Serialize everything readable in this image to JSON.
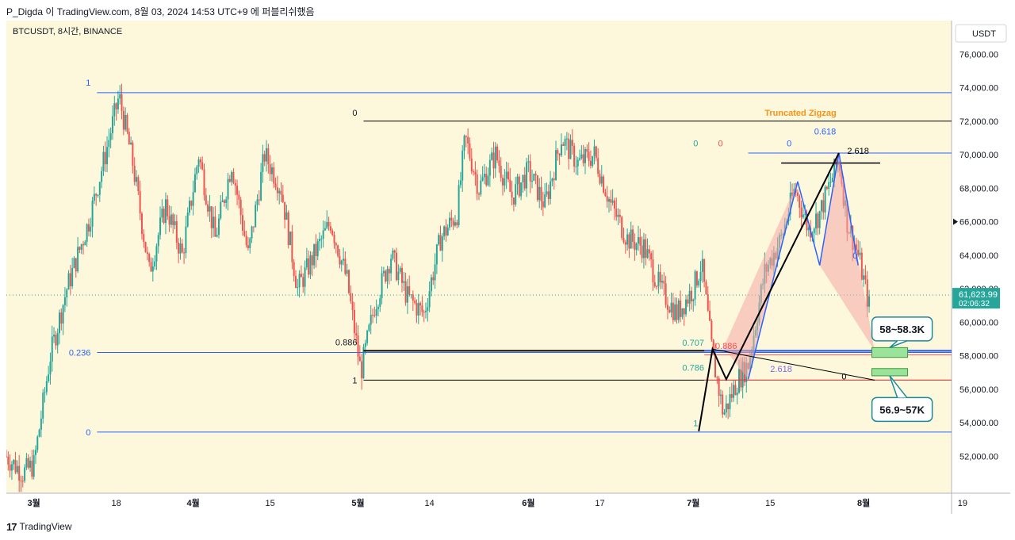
{
  "header": {
    "text": "P_Digda 이 TradingView.com, 8월 03, 2024 14:53 UTC+9 에 퍼블리쉬했음"
  },
  "footer": {
    "logo": "17",
    "brand": "TradingView"
  },
  "colors": {
    "background": "#fdf8dc",
    "up": "#26a69a",
    "down": "#ef5350",
    "fib_blue": "#2962ff",
    "fib_black": "#000000",
    "pattern_fill": "#f4a7a7",
    "target_zone": "#9be39b",
    "callout": "#1a8a9a",
    "zigzag_label": "#f7931a"
  },
  "chart_data": {
    "type": "candlestick",
    "symbol_title": "BTCUSDT, 8시간, BINANCE",
    "currency_label": "USDT",
    "ylim": [
      49800,
      78000
    ],
    "y_ticks": [
      52000,
      54000,
      56000,
      58000,
      60000,
      62000,
      64000,
      66000,
      68000,
      70000,
      72000,
      74000,
      76000
    ],
    "y_tick_labels": [
      "52,000.00",
      "54,000.00",
      "56,000.00",
      "58,000.00",
      "60,000.00",
      "62,000.00",
      "64,000.00",
      "66,000.00",
      "68,000.00",
      "70,000.00",
      "72,000.00",
      "74,000.00",
      "76,000.00"
    ],
    "x_range_days": [
      -5,
      167
    ],
    "x_ticks": [
      {
        "day": 0,
        "label": "3월"
      },
      {
        "day": 15,
        "label": "18"
      },
      {
        "day": 29,
        "label": "4월"
      },
      {
        "day": 43,
        "label": "15"
      },
      {
        "day": 59,
        "label": "5월"
      },
      {
        "day": 72,
        "label": "14"
      },
      {
        "day": 90,
        "label": "6월"
      },
      {
        "day": 103,
        "label": "17"
      },
      {
        "day": 120,
        "label": "7월"
      },
      {
        "day": 134,
        "label": "15"
      },
      {
        "day": 151,
        "label": "8월"
      },
      {
        "day": 169,
        "label": "19"
      }
    ],
    "price_path": [
      [
        -5,
        52000
      ],
      [
        -2,
        51000
      ],
      [
        0,
        51500
      ],
      [
        3,
        58000
      ],
      [
        6,
        62000
      ],
      [
        10,
        66000
      ],
      [
        13,
        70000
      ],
      [
        15.5,
        73500
      ],
      [
        18,
        69500
      ],
      [
        21,
        63000
      ],
      [
        24,
        67000
      ],
      [
        27,
        64000
      ],
      [
        30,
        70000
      ],
      [
        33,
        65000
      ],
      [
        36,
        69500
      ],
      [
        39,
        64000
      ],
      [
        42,
        70000
      ],
      [
        45,
        68000
      ],
      [
        48,
        62000
      ],
      [
        51,
        64000
      ],
      [
        54,
        66000
      ],
      [
        57,
        62500
      ],
      [
        59.5,
        57000
      ],
      [
        62,
        61000
      ],
      [
        65,
        64000
      ],
      [
        68,
        61500
      ],
      [
        71,
        60500
      ],
      [
        74,
        65000
      ],
      [
        77,
        66500
      ],
      [
        78.5,
        71000
      ],
      [
        81,
        68000
      ],
      [
        84,
        70000
      ],
      [
        87,
        67500
      ],
      [
        90,
        69000
      ],
      [
        93,
        67000
      ],
      [
        96,
        71000
      ],
      [
        99,
        69500
      ],
      [
        102,
        70000
      ],
      [
        105,
        67000
      ],
      [
        108,
        65000
      ],
      [
        111,
        64500
      ],
      [
        114,
        62000
      ],
      [
        117,
        60500
      ],
      [
        120,
        62000
      ],
      [
        121.5,
        63500
      ],
      [
        123.5,
        58000
      ],
      [
        125.5,
        54500
      ],
      [
        128,
        56500
      ],
      [
        130,
        57500
      ],
      [
        133,
        63000
      ],
      [
        136,
        65000
      ],
      [
        138.5,
        68000
      ],
      [
        141,
        65500
      ],
      [
        143,
        66500
      ],
      [
        146.5,
        69800
      ],
      [
        148,
        66000
      ],
      [
        150,
        64000
      ],
      [
        152,
        61000
      ]
    ],
    "last_price": {
      "value": 61623.99,
      "label": "61,623.99",
      "countdown": "02:06:32"
    },
    "fib_blue_left": [
      {
        "ratio": "1",
        "price": 73700
      },
      {
        "ratio": "0.236",
        "price": 58200
      },
      {
        "ratio": "0",
        "price": 53450
      }
    ],
    "fib_black_left": [
      {
        "ratio": "0",
        "price": 72000
      },
      {
        "ratio": "0.886",
        "price": 58300
      },
      {
        "ratio": "1",
        "price": 56550
      }
    ],
    "harmonic_labels": [
      {
        "text": "0",
        "color": "#26a69a"
      },
      {
        "text": "0",
        "color": "#ef5350"
      },
      {
        "text": "0",
        "color": "#2962ff"
      },
      {
        "text": "0.618",
        "color": "#2962ff"
      },
      {
        "text": "2.618",
        "color": "#000000"
      },
      {
        "text": "0",
        "color": "#2962ff"
      },
      {
        "text": "0.707",
        "color": "#26a69a"
      },
      {
        "text": "0.886",
        "color": "#ef5350"
      },
      {
        "text": "0.786",
        "color": "#26a69a"
      },
      {
        "text": "2.618",
        "color": "#7b68ee"
      },
      {
        "text": "0",
        "color": "#000000"
      },
      {
        "text": "1",
        "color": "#26a69a"
      }
    ],
    "zigzag_label": "Truncated Zigzag",
    "target_zones": [
      {
        "label": "58~58.3K",
        "low": 58000,
        "high": 58300
      },
      {
        "label": "56.9~57K",
        "low": 56900,
        "high": 57050
      }
    ]
  }
}
